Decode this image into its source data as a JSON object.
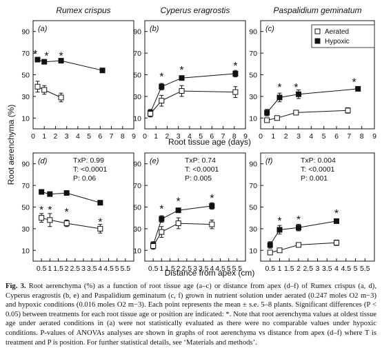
{
  "chart_data": {
    "type": "line",
    "shared_ylabel": "Root aerenchyma (%)",
    "xlabel_top": "Root tissue age (days)",
    "xlabel_bottom": "Distance from apex (cm)",
    "legend": {
      "placement": "top-right",
      "entries": [
        "Aerated",
        "Hypoxic"
      ]
    },
    "panels": [
      {
        "label": "(a)",
        "column_title": "Rumex crispus",
        "xlim": [
          0,
          9
        ],
        "xticks": [
          "0",
          "1",
          "2",
          "3",
          "4",
          "5",
          "6",
          "7",
          "8",
          "9"
        ],
        "ylim": [
          0,
          100
        ],
        "yticks": [
          "10",
          "30",
          "50",
          "70",
          "90"
        ],
        "series": [
          {
            "name": "Hypoxic",
            "x": [
              0.4,
              1,
              2.5,
              6.2
            ],
            "y": [
              64,
              62,
              63,
              54
            ],
            "err": [
              2,
              1.5,
              2,
              2
            ]
          },
          {
            "name": "Aerated",
            "x": [
              0.4,
              1,
              2.5
            ],
            "y": [
              39,
              36,
              29
            ],
            "err": [
              5,
              4,
              4
            ]
          }
        ],
        "stars": [
          [
            0.2,
            71
          ],
          [
            1.2,
            69
          ],
          [
            2.5,
            69
          ]
        ],
        "annotations": []
      },
      {
        "label": "(b)",
        "column_title": "Cyperus eragrostis",
        "xlim": [
          0,
          9
        ],
        "xticks": [
          "0",
          "1",
          "2",
          "3",
          "4",
          "5",
          "6",
          "7",
          "8",
          "9"
        ],
        "ylim": [
          0,
          100
        ],
        "yticks": [
          "10",
          "30",
          "50",
          "70",
          "90"
        ],
        "series": [
          {
            "name": "Hypoxic",
            "x": [
              0.5,
              1.5,
              3.3,
              8.1
            ],
            "y": [
              15,
              39,
              47,
              51
            ],
            "err": [
              3,
              3,
              2,
              3
            ]
          },
          {
            "name": "Aerated",
            "x": [
              0.5,
              1.5,
              3.3,
              8.1
            ],
            "y": [
              14,
              26,
              35,
              34
            ],
            "err": [
              3,
              5,
              5,
              5
            ]
          }
        ],
        "stars": [
          [
            1.5,
            50
          ],
          [
            3.3,
            56
          ],
          [
            8.1,
            60
          ]
        ],
        "annotations": []
      },
      {
        "label": "(c)",
        "column_title": "Paspalidium geminatum",
        "xlim": [
          0,
          9
        ],
        "xticks": [
          "0",
          "1",
          "2",
          "3",
          "4",
          "5",
          "6",
          "7",
          "8",
          "9"
        ],
        "ylim": [
          0,
          100
        ],
        "yticks": [
          "10",
          "30",
          "50",
          "70",
          "90"
        ],
        "series": [
          {
            "name": "Hypoxic",
            "x": [
              0.5,
              1.5,
              3.0,
              7.7
            ],
            "y": [
              15,
              29,
              32,
              37
            ],
            "err": [
              3,
              4,
              4,
              2
            ]
          },
          {
            "name": "Aerated",
            "x": [
              0.5,
              1.3,
              2.8,
              6.9
            ],
            "y": [
              8,
              10,
              15,
              17
            ],
            "err": [
              2,
              1.5,
              1.5,
              2.5
            ]
          }
        ],
        "stars": [
          [
            1.5,
            40
          ],
          [
            2.8,
            40
          ],
          [
            7.4,
            45
          ]
        ],
        "annotations": []
      },
      {
        "label": "(d)",
        "column_title": "",
        "xlim": [
          0,
          6
        ],
        "xticks": [
          "0.5",
          "1",
          "1.5",
          "2",
          "2.5",
          "3",
          "3.5",
          "4",
          "4.5",
          "5",
          "5.5"
        ],
        "ylim": [
          0,
          100
        ],
        "yticks": [
          "10",
          "30",
          "50",
          "70",
          "90"
        ],
        "series": [
          {
            "name": "Hypoxic",
            "x": [
              0.5,
              1,
              2,
              4
            ],
            "y": [
              64,
              62,
              63,
              54
            ],
            "err": [
              2,
              1.5,
              2,
              2
            ]
          },
          {
            "name": "Aerated",
            "x": [
              0.5,
              1,
              2,
              4
            ],
            "y": [
              40,
              38,
              35,
              30
            ],
            "err": [
              4,
              6,
              3,
              4
            ]
          }
        ],
        "stars": [
          [
            0.5,
            49
          ],
          [
            1,
            49
          ],
          [
            2,
            47
          ],
          [
            4,
            38
          ]
        ],
        "annotations": [
          "TxP: 0.99",
          "T: <0.0001",
          "P: 0.06"
        ]
      },
      {
        "label": "(e)",
        "column_title": "",
        "xlim": [
          0,
          6
        ],
        "xticks": [
          "0.5",
          "1",
          "1.5",
          "2",
          "2.5",
          "3",
          "3.5",
          "4",
          "4.5",
          "5",
          "5.5"
        ],
        "ylim": [
          0,
          100
        ],
        "yticks": [
          "10",
          "30",
          "50",
          "70",
          "90"
        ],
        "series": [
          {
            "name": "Hypoxic",
            "x": [
              0.5,
              1,
              2,
              4
            ],
            "y": [
              15,
              39,
              47,
              51
            ],
            "err": [
              3,
              3,
              2,
              3
            ]
          },
          {
            "name": "Aerated",
            "x": [
              0.5,
              1,
              2,
              4
            ],
            "y": [
              14,
              27,
              35,
              34
            ],
            "err": [
              3,
              5,
              5,
              4
            ]
          }
        ],
        "stars": [
          [
            1,
            50
          ],
          [
            2,
            57
          ],
          [
            4,
            60
          ]
        ],
        "annotations": [
          "TxP: 0.74",
          "T: <0.0001",
          "P: 0.005"
        ]
      },
      {
        "label": "(f)",
        "column_title": "",
        "xlim": [
          0,
          6
        ],
        "xticks": [
          "0.5",
          "1",
          "1.5",
          "2",
          "2.5",
          "3",
          "3.5",
          "4",
          "4.5",
          "5",
          "5.5"
        ],
        "ylim": [
          0,
          100
        ],
        "yticks": [
          "10",
          "30",
          "50",
          "70",
          "90"
        ],
        "series": [
          {
            "name": "Hypoxic",
            "x": [
              0.5,
              1,
              2,
              4
            ],
            "y": [
              15,
              29,
              31,
              37
            ],
            "err": [
              3,
              4,
              3,
              2
            ]
          },
          {
            "name": "Aerated",
            "x": [
              0.5,
              1,
              2,
              4
            ],
            "y": [
              8,
              10,
              15,
              17
            ],
            "err": [
              2,
              1.5,
              1.5,
              2.5
            ]
          }
        ],
        "stars": [
          [
            1,
            39
          ],
          [
            2,
            40
          ],
          [
            4,
            46
          ]
        ],
        "annotations": [
          "TxP: 0.004",
          "T: <0.0001",
          "P: 0.001"
        ]
      }
    ]
  },
  "caption": {
    "label": "Fig. 3.",
    "text": "Root aerenchyma (%) as a function of root tissue age (a–c) or distance from apex (d–f) of Rumex crispus (a, d), Cyperus eragrostis (b, e) and Paspalidium geminatum (c, f) grown in nutrient solution under aerated (0.247 moles O2 m−3) and hypoxic conditions (0.016 moles O2 m−3). Each point represents the mean ± s.e. 5–8 plants. Significant differences (P < 0.05) between treatments for each root tissue age or position are indicated: *. Note that root aerenchyma values at oldest tissue age under aerated conditions in (a) were not statistically evaluated as there were no comparable values under hypoxic conditions. P-values of ANOVAs analyses are shown in graphs of root aerenchyma vs distance from apex (d–f) where T is treatment and P is position. For further statistical details, see ‘Materials and methods’."
  }
}
